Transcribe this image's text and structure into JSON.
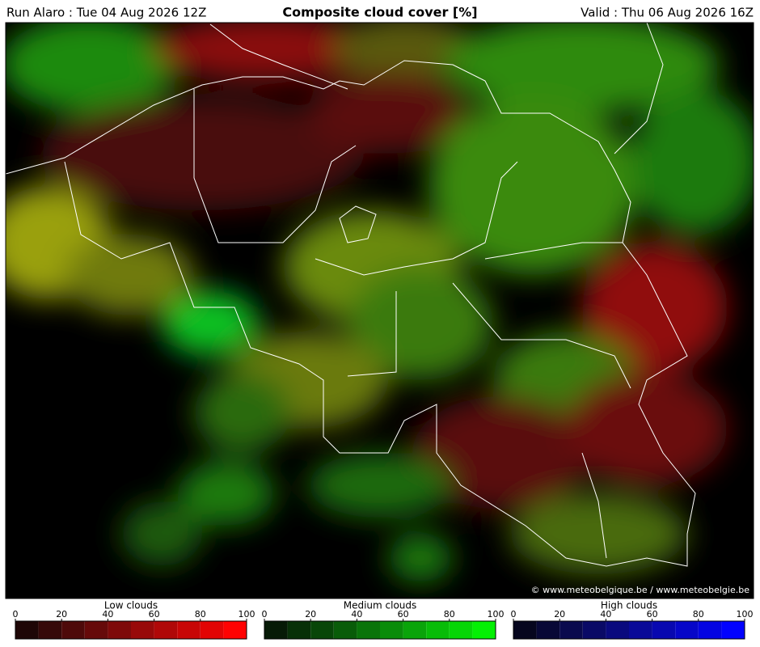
{
  "header": {
    "left": "Run Alaro : Tue 04 Aug 2026 12Z",
    "title": "Composite cloud cover [%]",
    "right": "Valid : Thu 06 Aug 2026 16Z"
  },
  "credit": "© www.meteobelgique.be / www.meteobelgie.be",
  "legends": [
    {
      "label": "Low clouds",
      "range": [
        0,
        100
      ],
      "ticks": [
        0,
        20,
        40,
        60,
        80,
        100
      ],
      "colors": [
        "#1e0606",
        "#360909",
        "#4e0a0a",
        "#660a0a",
        "#7e0a0a",
        "#980909",
        "#b00808",
        "#c80606",
        "#e20404",
        "#ff0202"
      ]
    },
    {
      "label": "Medium clouds",
      "range": [
        0,
        100
      ],
      "ticks": [
        0,
        20,
        40,
        60,
        80,
        100
      ],
      "colors": [
        "#061a06",
        "#073007",
        "#084608",
        "#095c09",
        "#0a740a",
        "#0a8c0a",
        "#0aa40a",
        "#08bc08",
        "#06d606",
        "#04f004"
      ]
    },
    {
      "label": "High clouds",
      "range": [
        0,
        100
      ],
      "ticks": [
        0,
        20,
        40,
        60,
        80,
        100
      ],
      "colors": [
        "#06061e",
        "#080836",
        "#0a0a4e",
        "#0a0a66",
        "#0a0a7e",
        "#0a0a98",
        "#0808b0",
        "#0606c8",
        "#0404e2",
        "#0202ff"
      ]
    }
  ]
}
